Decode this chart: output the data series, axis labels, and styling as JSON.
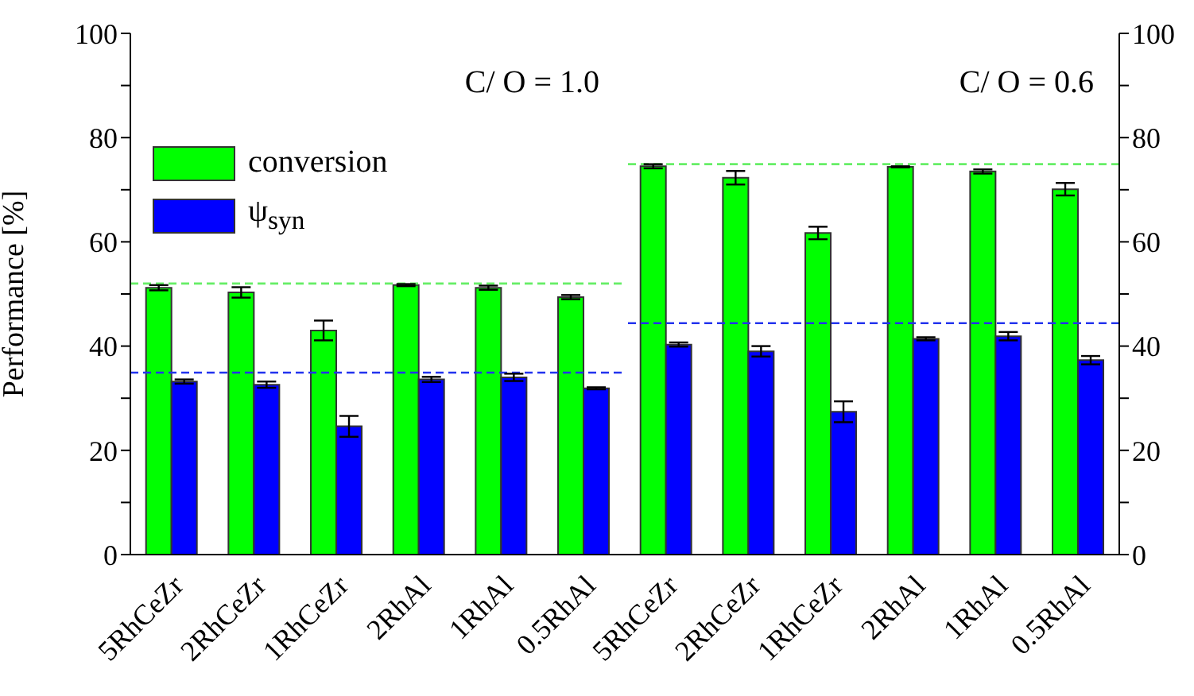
{
  "chart_data": [
    {
      "type": "bar",
      "ylabel": "Performance [%]",
      "annotations": [
        "C/ O = 1.0"
      ],
      "categories": [
        "5RhCeZr",
        "2RhCeZr",
        "1RhCeZr",
        "2RhAl",
        "1RhAl",
        "0.5RhAl"
      ],
      "series": [
        {
          "name": "conversion",
          "color": "#00ff00",
          "values": [
            51.2,
            50.3,
            43.0,
            51.7,
            51.2,
            49.4
          ],
          "errors": [
            0.5,
            1.0,
            1.9,
            0.2,
            0.4,
            0.4
          ]
        },
        {
          "name": "ψ$_{syn}$",
          "color": "#0000ff",
          "values": [
            33.2,
            32.6,
            24.6,
            33.6,
            34.0,
            31.9
          ],
          "errors": [
            0.4,
            0.6,
            2.0,
            0.5,
            0.7,
            0.2
          ]
        }
      ],
      "ylim": [
        0,
        100
      ],
      "yticks": [
        0,
        {
          "value": 10,
          "label": null
        },
        20,
        {
          "value": 30,
          "label": null
        },
        40,
        {
          "value": 50,
          "label": null
        },
        60,
        {
          "value": 70,
          "label": null
        },
        80,
        {
          "value": 90,
          "label": null
        },
        100
      ],
      "ref_lines": [
        {
          "axis": "y",
          "value": 52.0,
          "color": "#66ee66",
          "line_style": "dashed"
        },
        {
          "axis": "y",
          "value": 34.9,
          "color": "#2233ee",
          "line_style": "dashed"
        }
      ],
      "legend": "top left",
      "grid": false
    },
    {
      "type": "bar",
      "annotations": [
        "C/ O = 0.6"
      ],
      "categories": [
        "5RhCeZr",
        "2RhCeZr",
        "1RhCeZr",
        "2RhAl",
        "1RhAl",
        "0.5RhAl"
      ],
      "series": [
        {
          "color": "#00ff00",
          "values": [
            74.5,
            72.3,
            61.7,
            74.4,
            73.5,
            70.1
          ],
          "errors": [
            0.4,
            1.3,
            1.2,
            0.1,
            0.4,
            1.2
          ]
        },
        {
          "color": "#0000ff",
          "values": [
            40.3,
            39.0,
            27.4,
            41.4,
            41.9,
            37.3
          ],
          "errors": [
            0.4,
            1.0,
            2.0,
            0.3,
            0.8,
            0.8
          ]
        }
      ],
      "ylim": [
        0,
        100
      ],
      "yticks": [
        0,
        {
          "value": 10,
          "label": null
        },
        20,
        {
          "value": 30,
          "label": null
        },
        40,
        {
          "value": 50,
          "label": null
        },
        60,
        {
          "value": 70,
          "label": null
        },
        80,
        {
          "value": 90,
          "label": null
        },
        100
      ],
      "ref_lines": [
        {
          "axis": "y",
          "value": 74.9,
          "color": "#66ee66",
          "line_style": "dashed"
        },
        {
          "axis": "y",
          "value": 44.4,
          "color": "#2233ee",
          "line_style": "dashed"
        }
      ],
      "legend": false,
      "grid": false
    }
  ]
}
